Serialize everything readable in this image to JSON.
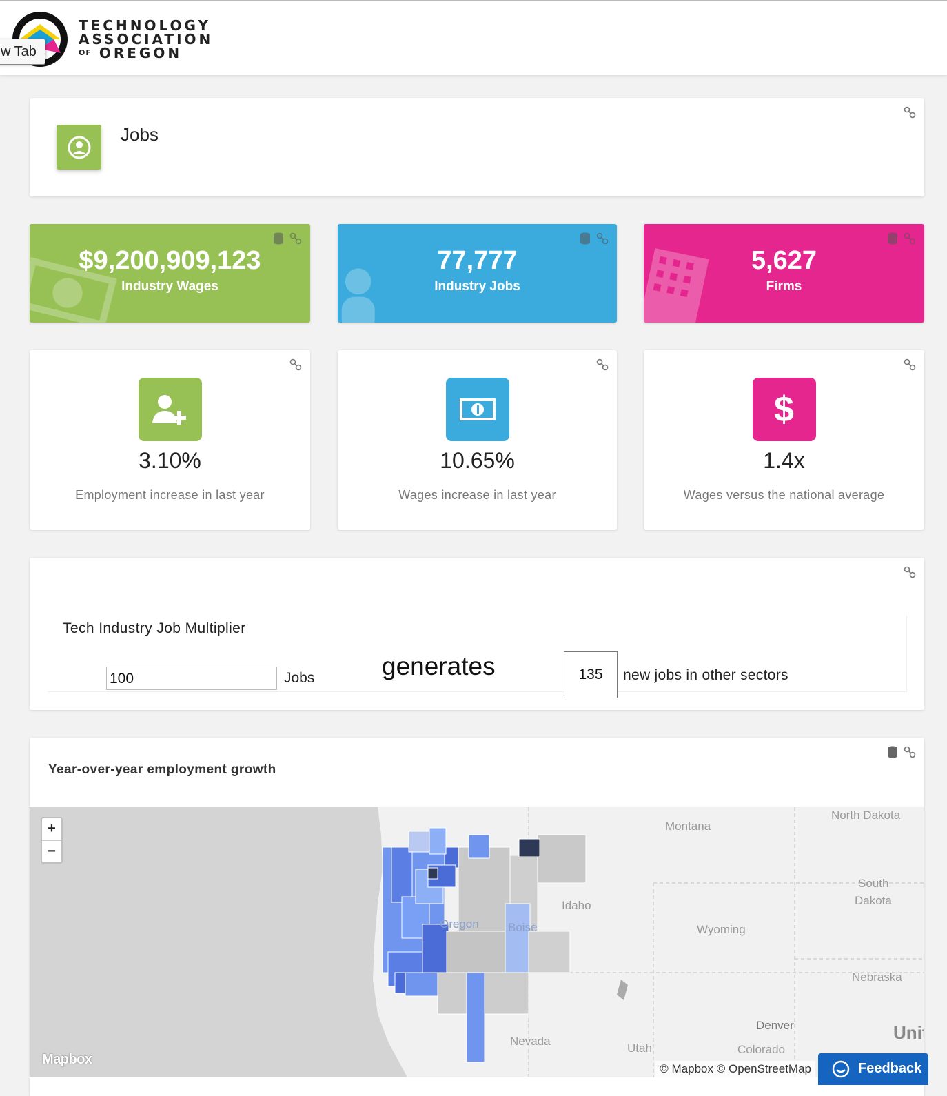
{
  "browser": {
    "tab_label": "w Tab"
  },
  "header": {
    "logo_line1": "TECHNOLOGY",
    "logo_line2": "ASSOCIATION",
    "logo_of": "OF",
    "logo_line3": "OREGON"
  },
  "title_card": {
    "title": "Jobs",
    "icon": "user-circle-icon",
    "color": "#97c055"
  },
  "stats": [
    {
      "value": "$9,200,909,123",
      "label": "Industry Wages",
      "color": "#97c055",
      "bg_icon": "money-icon"
    },
    {
      "value": "77,777",
      "label": "Industry Jobs",
      "color": "#3aabdc",
      "bg_icon": "person-icon"
    },
    {
      "value": "5,627",
      "label": "Firms",
      "color": "#e5268e",
      "bg_icon": "building-icon"
    }
  ],
  "kpis": [
    {
      "value": "3.10%",
      "description": "Employment increase in last year",
      "color": "#97c055",
      "icon": "user-plus-icon"
    },
    {
      "value": "10.65%",
      "description": "Wages increase in last year",
      "color": "#3aabdc",
      "icon": "money-icon"
    },
    {
      "value": "1.4x",
      "description": "Wages versus the national average",
      "color": "#e5268e",
      "icon": "dollar-icon"
    }
  ],
  "multiplier": {
    "title": "Tech Industry Job Multiplier",
    "input_value": "100",
    "jobs_label": "Jobs",
    "generates_label": "generates",
    "output_value": "135",
    "output_label": "new jobs in other sectors"
  },
  "map_card": {
    "title": "Year-over-year employment growth",
    "zoom_in": "+",
    "zoom_out": "−",
    "labels": {
      "montana": "Montana",
      "north_dakota": "North Dakota",
      "south_dakota_1": "South",
      "south_dakota_2": "Dakota",
      "idaho": "Idaho",
      "wyoming": "Wyoming",
      "nebraska": "Nebraska",
      "oregon": "Oregon",
      "boise": "Boise",
      "nevada": "Nevada",
      "utah": "Utah",
      "denver": "Denver",
      "colorado": "Colorado",
      "united_states": "Unit"
    },
    "mapbox_logo": "Mapbox",
    "attribution": "© Mapbox © OpenStreetMap"
  },
  "feedback": {
    "label": "Feedback"
  }
}
